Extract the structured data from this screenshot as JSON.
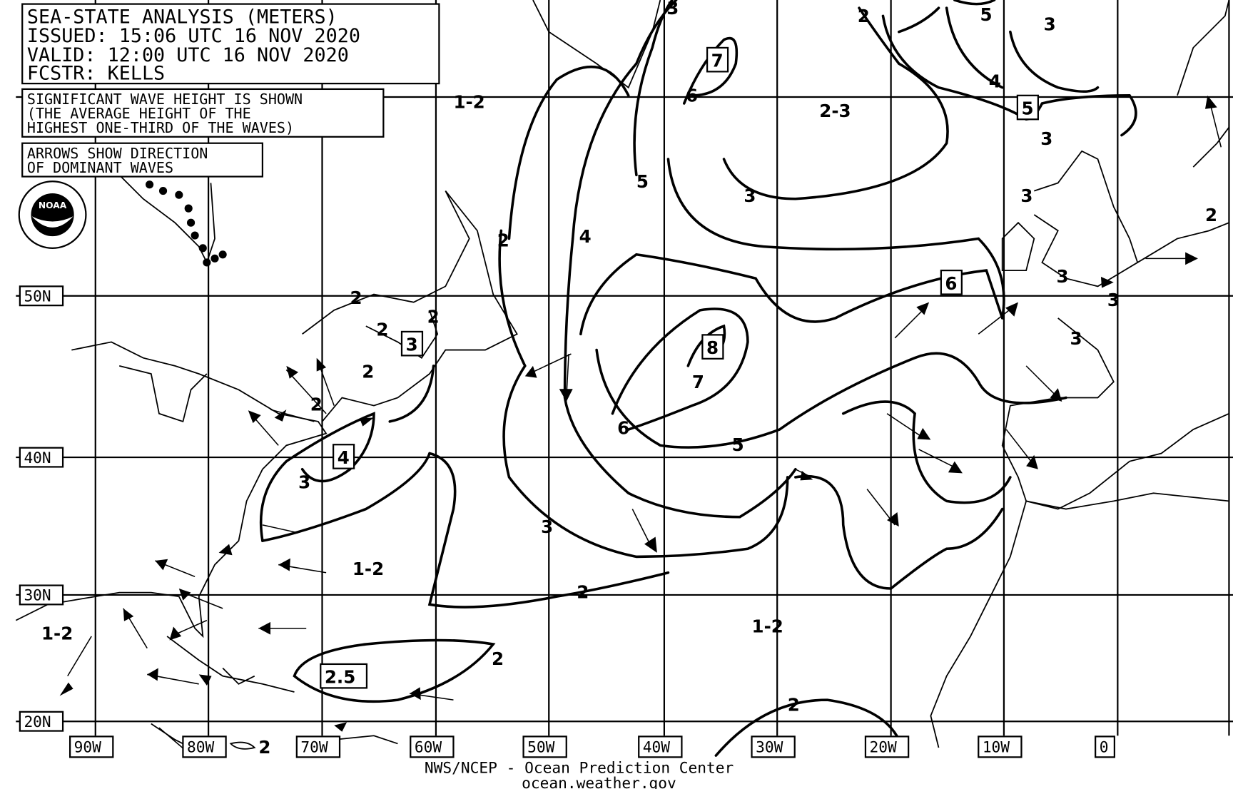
{
  "header": {
    "title": "SEA-STATE ANALYSIS (METERS)",
    "issued": "ISSUED:  15:06 UTC 16 NOV 2020",
    "valid": "VALID:   12:00 UTC 16 NOV 2020",
    "forecaster": "FCSTR:   KELLS"
  },
  "notes": {
    "wave_height_lines": [
      "SIGNIFICANT WAVE HEIGHT IS SHOWN",
      "(THE AVERAGE HEIGHT OF THE",
      "HIGHEST ONE-THIRD OF THE WAVES)"
    ],
    "arrows_lines": [
      "ARROWS SHOW DIRECTION",
      "OF DOMINANT WAVES"
    ]
  },
  "logo": {
    "text": "NOAA"
  },
  "longitude_labels": [
    "90W",
    "80W",
    "70W",
    "60W",
    "50W",
    "40W",
    "30W",
    "20W",
    "10W",
    "0"
  ],
  "latitude_labels": [
    "50N",
    "40N",
    "30N",
    "20N"
  ],
  "boxed_maxima": [
    "7",
    "5",
    "6",
    "8",
    "3",
    "4",
    "2.5"
  ],
  "contour_labels": [
    "3",
    "2",
    "5",
    "3",
    "6",
    "4",
    "3",
    "2",
    "5",
    "4",
    "3",
    "3",
    "3",
    "2",
    "3",
    "3",
    "2",
    "2",
    "2",
    "2",
    "2",
    "7",
    "6",
    "5",
    "3",
    "2",
    "3",
    "2",
    "2",
    "2"
  ],
  "range_labels": [
    "1-2",
    "2-3",
    "1-2",
    "1-2",
    "1-2"
  ],
  "footer": {
    "line1": "NWS/NCEP - Ocean Prediction Center",
    "line2": "ocean.weather.gov"
  },
  "colors": {
    "ink": "#000000",
    "background": "#ffffff"
  }
}
